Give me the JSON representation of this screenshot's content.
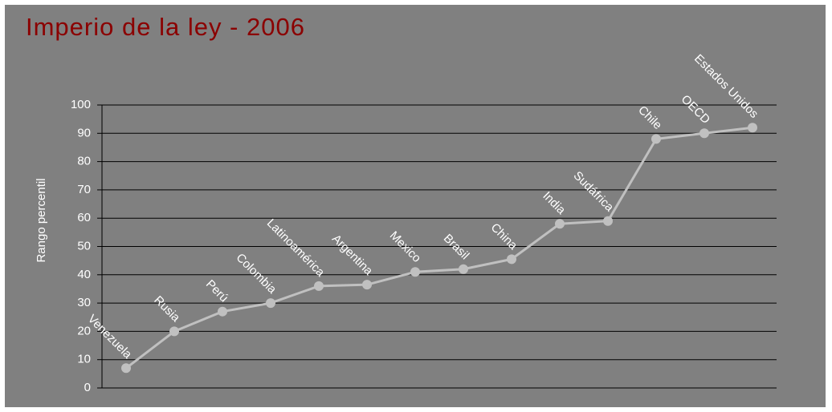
{
  "chart_data": {
    "type": "line",
    "title": "Imperio de la ley - 2006",
    "y_label": "Rango percentil",
    "categories": [
      "Venezuela",
      "Rusia",
      "Perú",
      "Colombia",
      "Latinoamérica",
      "Argentina",
      "Mexico",
      "Brasil",
      "China",
      "India",
      "Sudáfrica",
      "Chile",
      "OECD",
      "Estados Unidos"
    ],
    "values": [
      7,
      20,
      27,
      30,
      36,
      36.5,
      41,
      42,
      45.5,
      58,
      59,
      88,
      90,
      92
    ],
    "color": "#c0c0c0",
    "ylim": [
      0,
      100
    ],
    "yticks": [
      0,
      10,
      20,
      30,
      40,
      50,
      60,
      70,
      80,
      90,
      100
    ],
    "grid": true
  }
}
